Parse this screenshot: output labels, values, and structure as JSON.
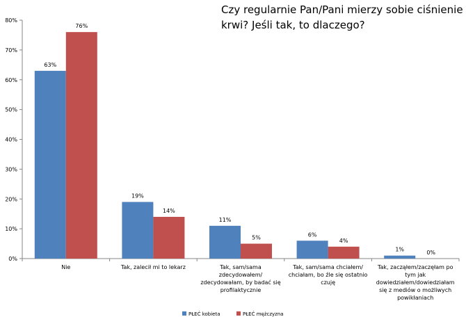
{
  "chart_data": {
    "type": "bar",
    "title_lines": [
      "Czy regularnie  Pan/Pani mierzy sobie ciśnienie",
      "krwi? Jeśli tak, to dlaczego?"
    ],
    "categories": [
      [
        "Nie"
      ],
      [
        "Tak, zalecił mi to lekarz"
      ],
      [
        "Tak, sam/sama",
        "zdecydowałem/",
        "zdecydowałam, by badać się",
        "profilaktycznie"
      ],
      [
        "Tak, sam/sama chciałem/",
        "chciałam, bo źle się ostatnio",
        "czuję"
      ],
      [
        "Tak, zacząłem/zaczęłam po",
        "tym jak",
        "dowiedziałem/dowiedziałam",
        "się z mediów o możliwych",
        "powikłaniach"
      ]
    ],
    "series": [
      {
        "name": "PŁEĆ kobieta",
        "color": "#4f81bd",
        "values": [
          63,
          19,
          11,
          6,
          1
        ],
        "labels": [
          "63%",
          "19%",
          "11%",
          "6%",
          "1%"
        ]
      },
      {
        "name": "PŁEĆ mężczyzna",
        "color": "#c0504d",
        "values": [
          76,
          14,
          5,
          4,
          0
        ],
        "labels": [
          "76%",
          "14%",
          "5%",
          "4%",
          "0%"
        ]
      }
    ],
    "ylim": [
      0,
      80
    ],
    "yticks": [
      "0%",
      "10%",
      "20%",
      "30%",
      "40%",
      "50%",
      "60%",
      "70%",
      "80%"
    ],
    "grid": false,
    "legend_position": "bottom-left"
  }
}
